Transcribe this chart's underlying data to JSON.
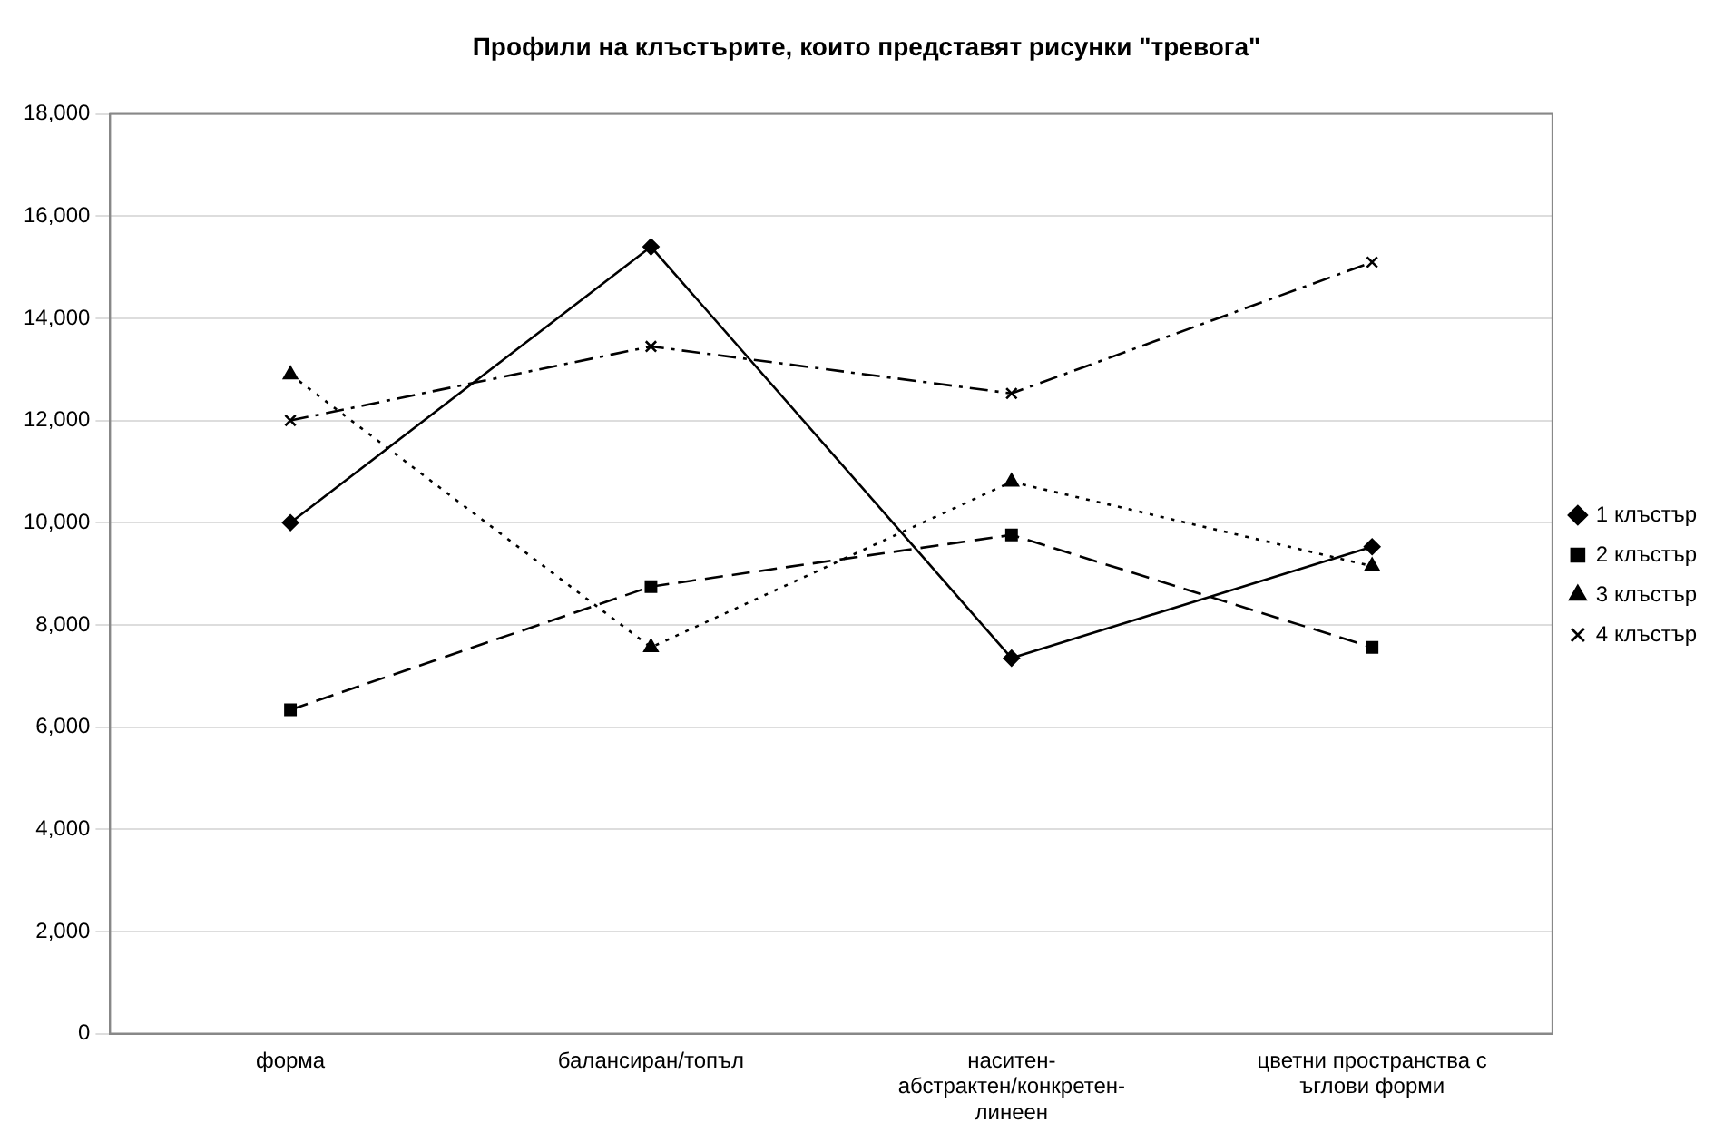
{
  "chart_data": {
    "type": "line",
    "title": "Профили на клъстърите, които представят рисунки \"тревога\"",
    "categories": [
      "форма",
      "балансиран/топъл",
      "наситен-абстрактен/конкретен-линеен",
      "цветни пространства с ъглови форми"
    ],
    "series": [
      {
        "name": "1 клъстър",
        "color": "#000000",
        "marker": "diamond",
        "line_style": "solid",
        "values": [
          10000,
          15400,
          7350,
          9530
        ]
      },
      {
        "name": "2 клъстър",
        "color": "#000000",
        "marker": "square",
        "line_style": "dashed",
        "values": [
          6340,
          8750,
          9760,
          7560
        ]
      },
      {
        "name": "3 клъстър",
        "color": "#000000",
        "marker": "triangle",
        "line_style": "dotted",
        "values": [
          12900,
          7560,
          10800,
          9150
        ]
      },
      {
        "name": "4 клъстър",
        "color": "#000000",
        "marker": "cross",
        "line_style": "dashdot",
        "values": [
          12000,
          13450,
          12530,
          15100
        ]
      }
    ],
    "ylim": [
      0,
      18000
    ],
    "yticks": [
      {
        "value": 0,
        "label": "0"
      },
      {
        "value": 2000,
        "label": "2,000"
      },
      {
        "value": 4000,
        "label": "4,000"
      },
      {
        "value": 6000,
        "label": "6,000"
      },
      {
        "value": 8000,
        "label": "8,000"
      },
      {
        "value": 10000,
        "label": "10,000"
      },
      {
        "value": 12000,
        "label": "12,000"
      },
      {
        "value": 14000,
        "label": "14,000"
      },
      {
        "value": 16000,
        "label": "16,000"
      },
      {
        "value": 18000,
        "label": "18,000"
      }
    ],
    "grid": "y",
    "legend": "right"
  }
}
